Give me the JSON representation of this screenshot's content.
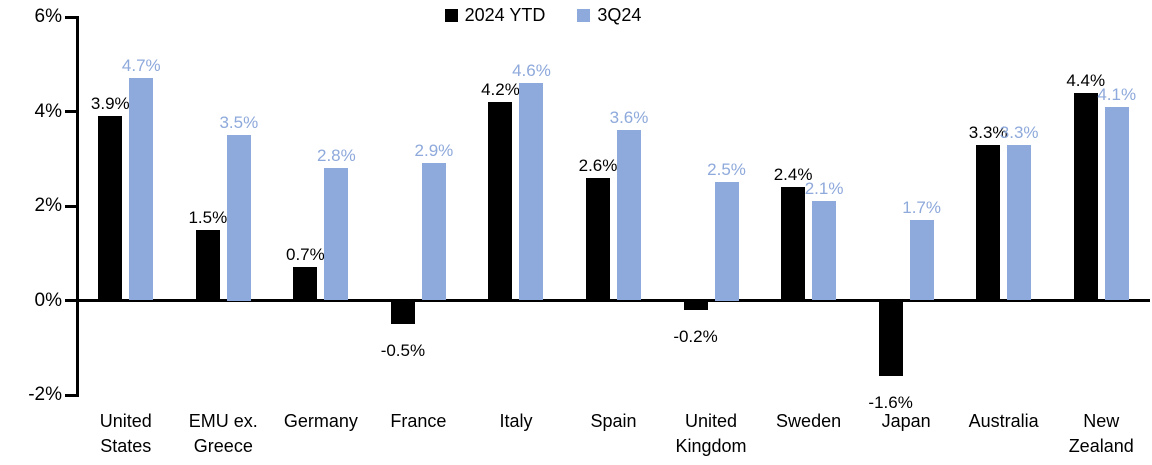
{
  "chart_data": {
    "type": "bar",
    "title": "",
    "xlabel": "",
    "ylabel": "",
    "ylim": [
      -2,
      6
    ],
    "grid": false,
    "legend_position": "top-center",
    "axis_color": "#000000",
    "background_color": "#ffffff",
    "categories": [
      "United States",
      "EMU ex. Greece",
      "Germany",
      "France",
      "Italy",
      "Spain",
      "United Kingdom",
      "Sweden",
      "Japan",
      "Australia",
      "New Zealand"
    ],
    "category_lines": [
      [
        "United",
        "States"
      ],
      [
        "EMU ex.",
        "Greece"
      ],
      [
        "Germany"
      ],
      [
        "France"
      ],
      [
        "Italy"
      ],
      [
        "Spain"
      ],
      [
        "United",
        "Kingdom"
      ],
      [
        "Sweden"
      ],
      [
        "Japan"
      ],
      [
        "Australia"
      ],
      [
        "New",
        "Zealand"
      ]
    ],
    "y_ticks": [
      {
        "value": 6,
        "label": "6%"
      },
      {
        "value": 4,
        "label": "4%"
      },
      {
        "value": 2,
        "label": "2%"
      },
      {
        "value": 0,
        "label": "0%"
      },
      {
        "value": -2,
        "label": "-2%"
      }
    ],
    "series": [
      {
        "name": "2024 YTD",
        "color": "#000000",
        "label_color": "#000000",
        "values": [
          3.9,
          1.5,
          0.7,
          -0.5,
          4.2,
          2.6,
          -0.2,
          2.4,
          -1.6,
          3.3,
          4.4
        ],
        "labels": [
          "3.9%",
          "1.5%",
          "0.7%",
          "-0.5%",
          "4.2%",
          "2.6%",
          "-0.2%",
          "2.4%",
          "-1.6%",
          "3.3%",
          "4.4%"
        ]
      },
      {
        "name": "3Q24",
        "color": "#8EA9DB",
        "label_color": "#8EA9DB",
        "values": [
          4.7,
          3.5,
          2.8,
          2.9,
          4.6,
          3.6,
          2.5,
          2.1,
          1.7,
          3.3,
          4.1
        ],
        "labels": [
          "4.7%",
          "3.5%",
          "2.8%",
          "2.9%",
          "4.6%",
          "3.6%",
          "2.5%",
          "2.1%",
          "1.7%",
          "3.3%",
          "4.1%"
        ]
      }
    ]
  }
}
